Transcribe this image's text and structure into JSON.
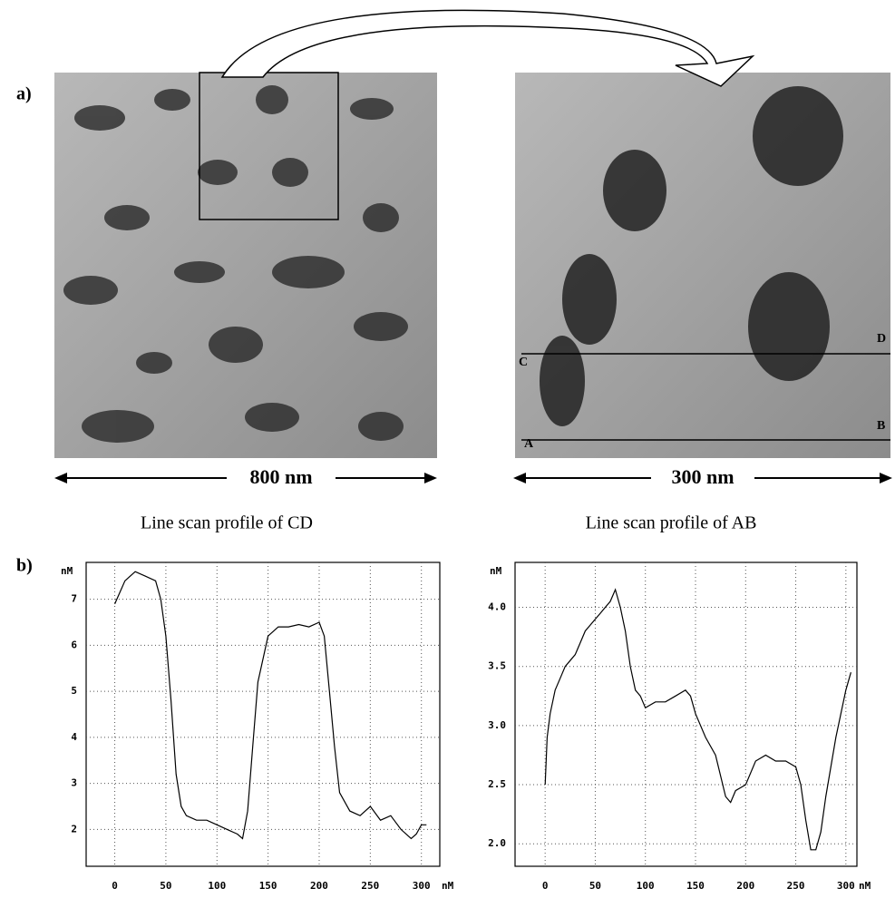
{
  "figure": {
    "panel_a_label": "a)",
    "panel_b_label": "b)",
    "scale_left": "800 nm",
    "scale_right": "300 nm",
    "caption_left": "Line scan profile of CD",
    "caption_right": "Line scan profile of AB",
    "markers": [
      "A",
      "B",
      "C",
      "D"
    ]
  },
  "chart_data": [
    {
      "type": "line",
      "ylabel": "nM",
      "xlabel": "nM",
      "x": [
        0,
        10,
        20,
        30,
        40,
        45,
        50,
        55,
        60,
        65,
        70,
        80,
        90,
        100,
        110,
        120,
        125,
        130,
        135,
        140,
        150,
        160,
        170,
        180,
        190,
        200,
        205,
        210,
        215,
        220,
        230,
        240,
        250,
        260,
        270,
        280,
        290,
        295,
        300,
        305
      ],
      "series": [
        {
          "color": "#000000",
          "values": [
            6.9,
            7.4,
            7.6,
            7.5,
            7.4,
            7.0,
            6.2,
            4.8,
            3.2,
            2.5,
            2.3,
            2.2,
            2.2,
            2.1,
            2.0,
            1.9,
            1.8,
            2.4,
            3.8,
            5.2,
            6.2,
            6.4,
            6.4,
            6.45,
            6.4,
            6.5,
            6.2,
            5.0,
            3.8,
            2.8,
            2.4,
            2.3,
            2.5,
            2.2,
            2.3,
            2.0,
            1.8,
            1.9,
            2.1,
            2.1
          ]
        }
      ],
      "xlim": [
        -28,
        318
      ],
      "ylim": [
        1.2,
        7.8
      ],
      "xticks": [
        0,
        50,
        100,
        150,
        200,
        250,
        300
      ],
      "yticks": [
        2,
        3,
        4,
        5,
        6,
        7
      ],
      "grid": true
    },
    {
      "type": "line",
      "ylabel": "nM",
      "xlabel": "nM",
      "x": [
        0,
        2,
        5,
        10,
        15,
        20,
        25,
        30,
        35,
        40,
        45,
        50,
        55,
        60,
        65,
        70,
        75,
        80,
        85,
        90,
        95,
        100,
        110,
        120,
        130,
        140,
        145,
        150,
        160,
        170,
        180,
        185,
        190,
        200,
        210,
        220,
        230,
        240,
        250,
        255,
        260,
        265,
        270,
        275,
        280,
        290,
        300,
        305
      ],
      "series": [
        {
          "color": "#000000",
          "values": [
            2.5,
            2.9,
            3.1,
            3.3,
            3.4,
            3.5,
            3.55,
            3.6,
            3.7,
            3.8,
            3.85,
            3.9,
            3.95,
            4.0,
            4.05,
            4.15,
            4.0,
            3.8,
            3.5,
            3.3,
            3.25,
            3.15,
            3.2,
            3.2,
            3.25,
            3.3,
            3.25,
            3.1,
            2.9,
            2.75,
            2.4,
            2.35,
            2.45,
            2.5,
            2.7,
            2.75,
            2.7,
            2.7,
            2.65,
            2.5,
            2.2,
            1.95,
            1.95,
            2.1,
            2.4,
            2.9,
            3.3,
            3.45
          ]
        }
      ],
      "xlim": [
        -30,
        311
      ],
      "ylim": [
        1.81,
        4.38
      ],
      "xticks": [
        0,
        50,
        100,
        150,
        200,
        250,
        300
      ],
      "yticks": [
        {
          "value": 2,
          "label": "2.0"
        },
        2.5,
        {
          "value": 3,
          "label": "3.0"
        },
        3.5,
        {
          "value": 4,
          "label": "4.0"
        }
      ],
      "grid": true
    }
  ]
}
